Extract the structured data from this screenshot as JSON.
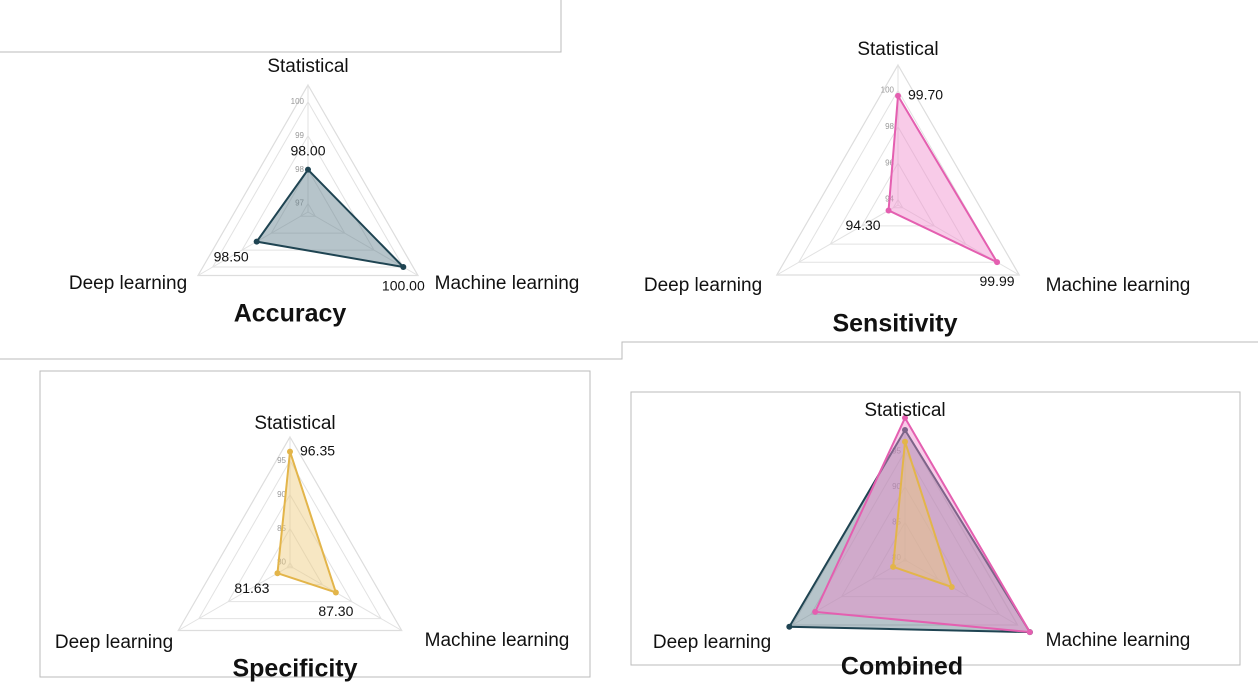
{
  "chart_data": [
    {
      "type": "radar",
      "title": "Accuracy",
      "categories": [
        "Statistical",
        "Machine learning",
        "Deep learning"
      ],
      "rlim": [
        96.75,
        100.5
      ],
      "rticks": [
        97,
        98,
        99,
        100
      ],
      "series": [
        {
          "color": "#1f4452",
          "fill": "#5e7c8a",
          "values": [
            98,
            100,
            98.5
          ],
          "value_labels": [
            "98.00",
            "100.00",
            "98.50"
          ]
        }
      ]
    },
    {
      "type": "radar",
      "title": "Sensitivity",
      "categories": [
        "Statistical",
        "Machine learning",
        "Deep learning"
      ],
      "rlim": [
        93.7,
        101.4
      ],
      "rticks": [
        94,
        96,
        98,
        100
      ],
      "series": [
        {
          "color": "#e45fb0",
          "fill": "#f08ccb",
          "values": [
            99.7,
            99.99,
            94.3
          ],
          "value_labels": [
            "99.70",
            "99.99",
            "94.30"
          ]
        }
      ]
    },
    {
      "type": "radar",
      "title": "Specificity",
      "categories": [
        "Statistical",
        "Machine learning",
        "Deep learning"
      ],
      "rlim": [
        79.5,
        98.5
      ],
      "rticks": [
        80,
        85,
        90,
        95
      ],
      "series": [
        {
          "color": "#e3b54a",
          "fill": "#eec97a",
          "values": [
            96.35,
            87.3,
            81.63
          ],
          "value_labels": [
            "96.35",
            "87.30",
            "81.63"
          ]
        }
      ]
    },
    {
      "type": "radar",
      "title": "Combined",
      "categories": [
        "Statistical",
        "Machine learning",
        "Deep learning"
      ],
      "rlim": [
        79.7,
        98
      ],
      "rticks": [
        80,
        85,
        90,
        95
      ],
      "series": [
        {
          "color": "#1f4452",
          "fill": "#5e7c8a",
          "values": [
            98,
            100,
            98.5
          ]
        },
        {
          "color": "#e45fb0",
          "fill": "#f08ccb",
          "values": [
            99.7,
            99.99,
            94.3
          ]
        },
        {
          "color": "#e3b54a",
          "fill": "#eec97a",
          "values": [
            96.35,
            87.3,
            81.63
          ]
        }
      ]
    }
  ]
}
